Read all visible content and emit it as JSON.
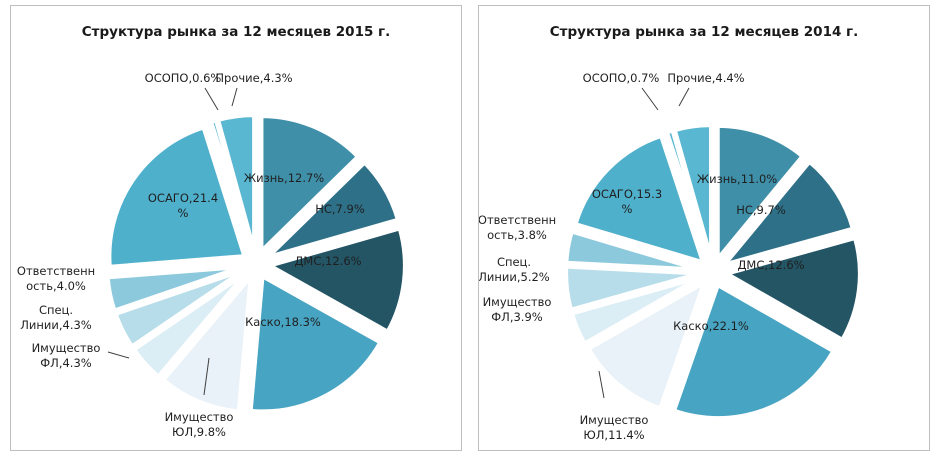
{
  "chart_data": [
    {
      "type": "pie",
      "title": "Структура рынка за 12 месяцев 2015 г.",
      "slices": [
        {
          "lines": [
            "Жизнь,12.7%"
          ],
          "value": 12.7,
          "color": "#3f8fa8"
        },
        {
          "lines": [
            "НС,7.9%"
          ],
          "value": 7.9,
          "color": "#2e7088"
        },
        {
          "lines": [
            "ДМС,12.6%"
          ],
          "value": 12.6,
          "color": "#235565"
        },
        {
          "lines": [
            "Каско,18.3%"
          ],
          "value": 18.3,
          "color": "#47a4c2"
        },
        {
          "lines": [
            "Имущество",
            "ЮЛ,9.8%"
          ],
          "value": 9.8,
          "color": "#e8f2f8"
        },
        {
          "lines": [
            "Имущество",
            "ФЛ,4.3%"
          ],
          "value": 4.3,
          "color": "#dbeef5"
        },
        {
          "lines": [
            "Спец.",
            "Линии,4.3%"
          ],
          "value": 4.3,
          "color": "#b6dde9"
        },
        {
          "lines": [
            "Ответственн",
            "ость,4.0%"
          ],
          "value": 4.0,
          "color": "#8cc9dc"
        },
        {
          "lines": [
            "ОСАГО,21.4",
            "%"
          ],
          "value": 21.4,
          "color": "#4fb0cc"
        },
        {
          "lines": [
            "ОСОПО,0.6%"
          ],
          "value": 0.6,
          "color": "#5ab7d1"
        },
        {
          "lines": [
            "Прочие,4.3%"
          ],
          "value": 4.3,
          "color": "#5ab7d1"
        }
      ]
    },
    {
      "type": "pie",
      "title": "Структура рынка за 12 месяцев  2014 г.",
      "slices": [
        {
          "lines": [
            "Жизнь,11.0%"
          ],
          "value": 11.0,
          "color": "#3f8fa8"
        },
        {
          "lines": [
            "НС,9.7%"
          ],
          "value": 9.7,
          "color": "#2e7088"
        },
        {
          "lines": [
            "ДМС,12.6%"
          ],
          "value": 12.6,
          "color": "#235565"
        },
        {
          "lines": [
            "Каско,22.1%"
          ],
          "value": 22.1,
          "color": "#47a4c2"
        },
        {
          "lines": [
            "Имущество",
            "ЮЛ,11.4%"
          ],
          "value": 11.4,
          "color": "#e8f2f8"
        },
        {
          "lines": [
            "Имущество",
            "ФЛ,3.9%"
          ],
          "value": 3.9,
          "color": "#dbeef5"
        },
        {
          "lines": [
            "Спец.",
            "Линии,5.2%"
          ],
          "value": 5.2,
          "color": "#b6dde9"
        },
        {
          "lines": [
            "Ответственн",
            "ость,3.8%"
          ],
          "value": 3.8,
          "color": "#8cc9dc"
        },
        {
          "lines": [
            "ОСАГО,15.3",
            "%"
          ],
          "value": 15.3,
          "color": "#4fb0cc"
        },
        {
          "lines": [
            "ОСОПО,0.7%"
          ],
          "value": 0.7,
          "color": "#5ab7d1"
        },
        {
          "lines": [
            "Прочие,4.4%"
          ],
          "value": 4.4,
          "color": "#5ab7d1"
        }
      ]
    }
  ]
}
